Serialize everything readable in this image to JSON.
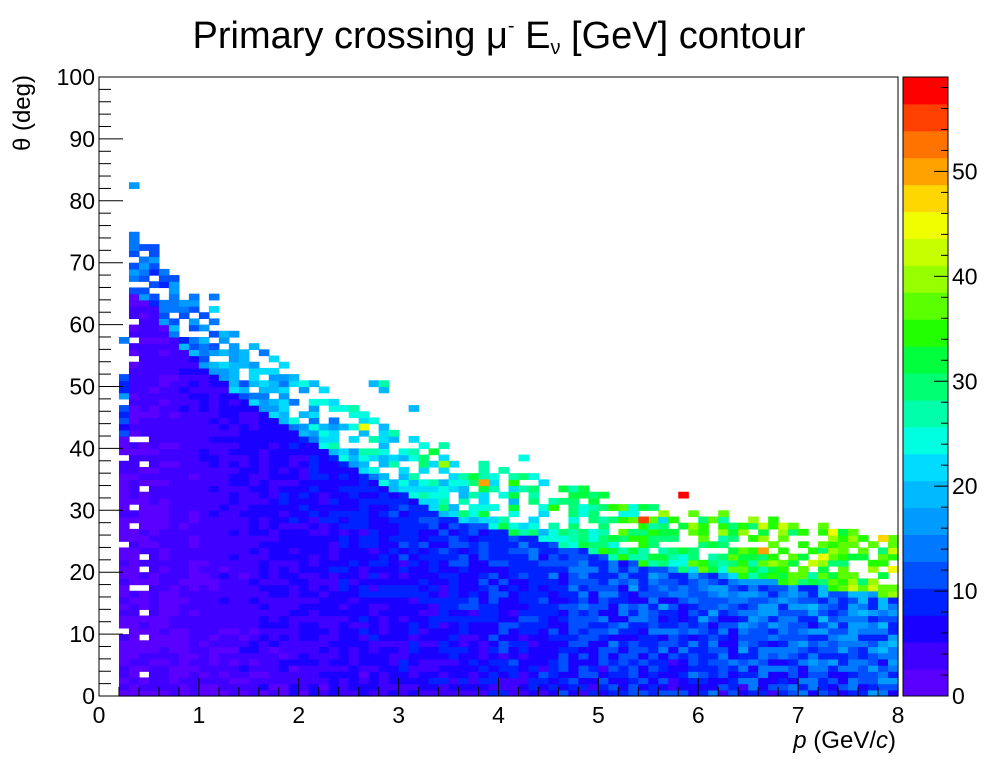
{
  "chart_data": {
    "type": "heatmap",
    "title": {
      "text_main": "Primary crossing μ",
      "superscript": "-",
      "text_mid": " E",
      "subscript": "ν",
      "text_end": " [GeV] contour"
    },
    "xlabel": {
      "italic": "p",
      "rest": " (GeV/",
      "italic2": "c",
      "close": ")"
    },
    "ylabel": "θ (deg)",
    "xlim": [
      0,
      8
    ],
    "ylim": [
      0,
      100
    ],
    "zlim": [
      0,
      59
    ],
    "x_ticks": [
      "0",
      "1",
      "2",
      "3",
      "4",
      "5",
      "6",
      "7",
      "8"
    ],
    "y_ticks": [
      "0",
      "10",
      "20",
      "30",
      "40",
      "50",
      "60",
      "70",
      "80",
      "90",
      "100"
    ],
    "z_ticks": [
      "0",
      "10",
      "20",
      "30",
      "40",
      "50"
    ],
    "bins": {
      "nx": 80,
      "ny": 100
    },
    "palette": [
      "#5a00ff",
      "#3f00ff",
      "#1a00ff",
      "#0022ff",
      "#0050ff",
      "#0078ff",
      "#009bff",
      "#00b9ff",
      "#00dcff",
      "#00ffe0",
      "#00ffaa",
      "#00ff73",
      "#00ff3c",
      "#22ff00",
      "#5aff00",
      "#96ff00",
      "#c8ff00",
      "#f0ff00",
      "#ffd700",
      "#ffa200",
      "#ff7300",
      "#ff4000",
      "#ff0000"
    ],
    "model": {
      "description": "mean E_nu per (p, theta) bin; region populated from p~0.25 GeV/c up to an upper theta edge",
      "edge_theta_deg": [
        [
          0.25,
          50
        ],
        [
          0.35,
          73
        ],
        [
          0.5,
          72
        ],
        [
          0.75,
          66
        ],
        [
          1.0,
          62
        ],
        [
          1.5,
          55
        ],
        [
          2.0,
          50
        ],
        [
          2.5,
          45
        ],
        [
          3.0,
          41
        ],
        [
          3.5,
          37
        ],
        [
          4.0,
          35
        ],
        [
          4.5,
          33
        ],
        [
          5.0,
          31
        ],
        [
          5.5,
          29
        ],
        [
          6.0,
          28
        ],
        [
          6.5,
          27
        ],
        [
          7.0,
          26
        ],
        [
          7.5,
          25
        ],
        [
          8.0,
          24
        ]
      ],
      "hot_bins": [
        [
          5.85,
          32.5,
          57
        ],
        [
          5.45,
          28.5,
          55
        ],
        [
          6.65,
          23.5,
          50
        ],
        [
          7.85,
          25.5,
          48
        ],
        [
          3.85,
          34.5,
          50
        ],
        [
          2.65,
          43.5,
          45
        ],
        [
          7.25,
          22.5,
          44
        ],
        [
          3.45,
          37.5,
          40
        ]
      ]
    }
  }
}
